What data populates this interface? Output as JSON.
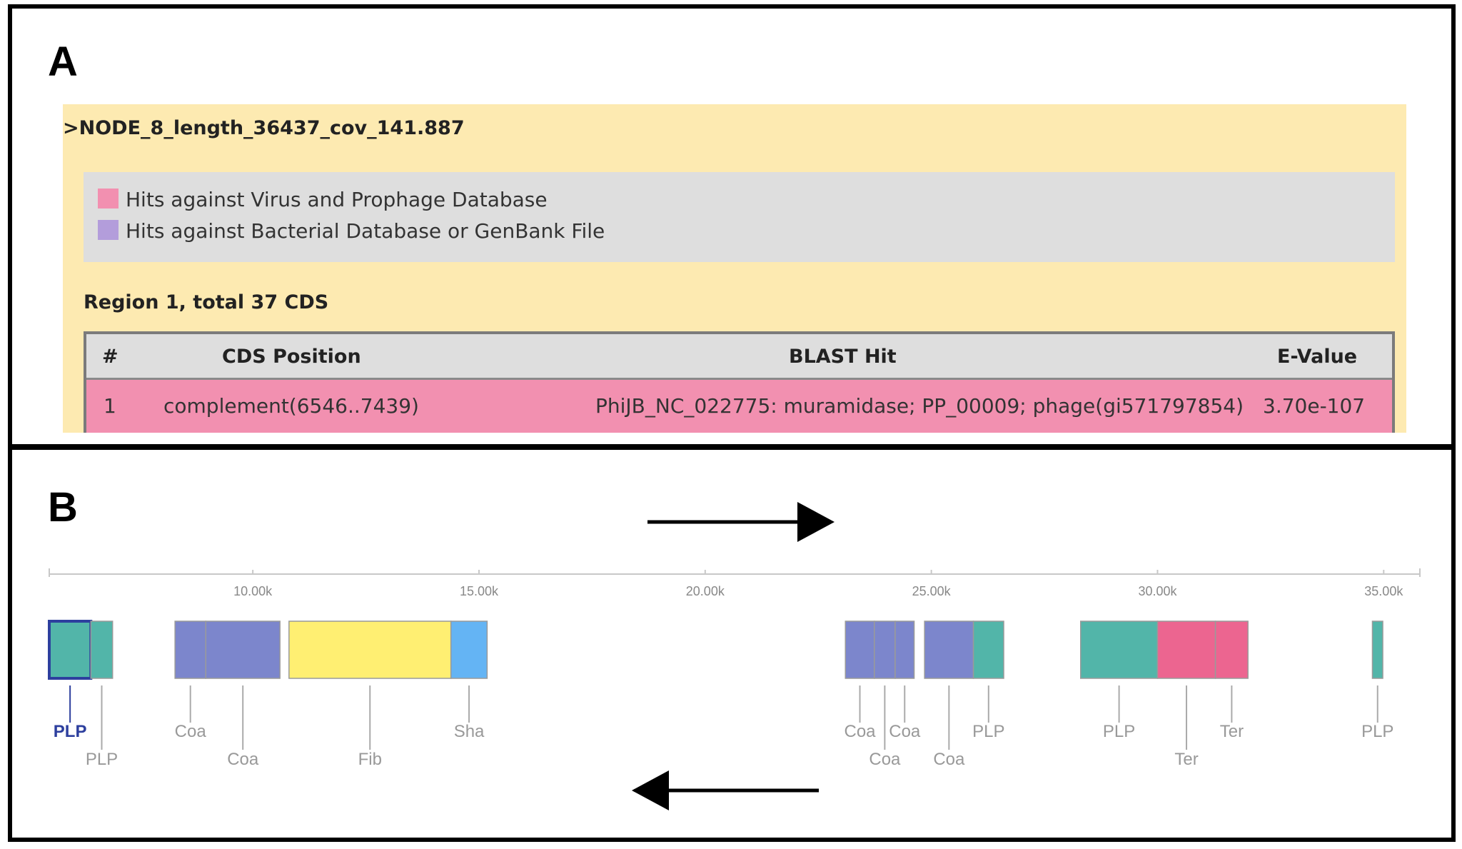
{
  "panel_a": {
    "letter": "A",
    "node_title": ">NODE_8_length_36437_cov_141.887",
    "legend": [
      {
        "label": "Hits against Virus and Prophage Database",
        "color": "#f290b0"
      },
      {
        "label": "Hits against Bacterial Database or GenBank File",
        "color": "#b39ddb"
      }
    ],
    "region_title": "Region 1, total 37 CDS",
    "table": {
      "headers": [
        "#",
        "CDS Position",
        "BLAST Hit",
        "E-Value"
      ],
      "rows": [
        [
          "1",
          "complement(6546..7439)",
          "PhiJB_NC_022775: muramidase; PP_00009; phage(gi571797854)",
          "3.70e-107"
        ]
      ]
    }
  },
  "panel_b": {
    "letter": "B",
    "axis": {
      "min": 5500,
      "max": 35800,
      "ticks": [
        "10.00k",
        "15.00k",
        "20.00k",
        "25.00k",
        "30.00k",
        "35.00k"
      ],
      "tick_values": [
        10000,
        15000,
        20000,
        25000,
        30000,
        35000
      ]
    },
    "colors": {
      "PLP": "#52b5a9",
      "Coa": "#7c86cc",
      "Fib": "#ffef72",
      "Sha": "#64b4f4",
      "Ter": "#ec6590"
    },
    "genes": [
      {
        "start": 5500,
        "end": 6420,
        "type": "PLP",
        "label": "PLP",
        "row": 1,
        "selected": true
      },
      {
        "start": 6420,
        "end": 6900,
        "type": "PLP",
        "label": "PLP",
        "row": 2
      },
      {
        "start": 8280,
        "end": 8960,
        "type": "Coa",
        "label": "Coa",
        "row": 1
      },
      {
        "start": 8960,
        "end": 10600,
        "type": "Coa",
        "label": "Coa",
        "row": 2
      },
      {
        "start": 10800,
        "end": 14380,
        "type": "Fib",
        "label": "Fib",
        "row": 2
      },
      {
        "start": 14380,
        "end": 15180,
        "type": "Sha",
        "label": "Sha",
        "row": 1
      },
      {
        "start": 23100,
        "end": 23740,
        "type": "Coa",
        "label": "Coa",
        "row": 1
      },
      {
        "start": 23740,
        "end": 24200,
        "type": "Coa",
        "label": "Coa",
        "row": 2
      },
      {
        "start": 24200,
        "end": 24620,
        "type": "Coa",
        "label": "Coa",
        "row": 1
      },
      {
        "start": 24850,
        "end": 25930,
        "type": "Coa",
        "label": "Coa",
        "row": 2
      },
      {
        "start": 25930,
        "end": 26600,
        "type": "PLP",
        "label": "PLP",
        "row": 1
      },
      {
        "start": 28300,
        "end": 30000,
        "type": "PLP",
        "label": "PLP",
        "row": 1
      },
      {
        "start": 30000,
        "end": 31280,
        "type": "Ter",
        "label": "Ter",
        "row": 2
      },
      {
        "start": 31280,
        "end": 32000,
        "type": "Ter",
        "label": "Ter",
        "row": 1
      },
      {
        "start": 34750,
        "end": 34980,
        "type": "PLP",
        "label": "PLP",
        "row": 1
      }
    ]
  }
}
